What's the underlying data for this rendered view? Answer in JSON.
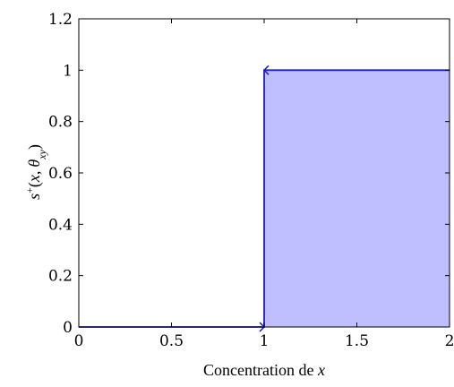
{
  "chart_data": {
    "type": "line",
    "xlabel_text": "Concentration de",
    "xlabel_var": "x",
    "ylabel": {
      "s": "s",
      "sup": "+",
      "open": "(",
      "x": "x",
      "comma": ",",
      "theta": "θ",
      "sub": "xy",
      "close": ")"
    },
    "xlim": [
      0,
      2
    ],
    "ylim": [
      0,
      1.2
    ],
    "xticks": [
      0,
      0.5,
      1,
      1.5,
      2
    ],
    "xtick_labels": [
      "0",
      "0.5",
      "1",
      "1.5",
      "2"
    ],
    "yticks": [
      0,
      0.2,
      0.4,
      0.6,
      0.8,
      1,
      1.2
    ],
    "ytick_labels": [
      "0",
      "0.2",
      "0.4",
      "0.6",
      "0.8",
      "1",
      "1.2"
    ],
    "grid": false,
    "series": [
      {
        "points": [
          [
            0,
            0
          ],
          [
            1,
            0
          ],
          [
            1,
            1
          ],
          [
            2,
            1
          ]
        ],
        "color": "#1a1ad6",
        "fill_from_x": 1,
        "fill_color": "#bfbfff"
      }
    ]
  }
}
